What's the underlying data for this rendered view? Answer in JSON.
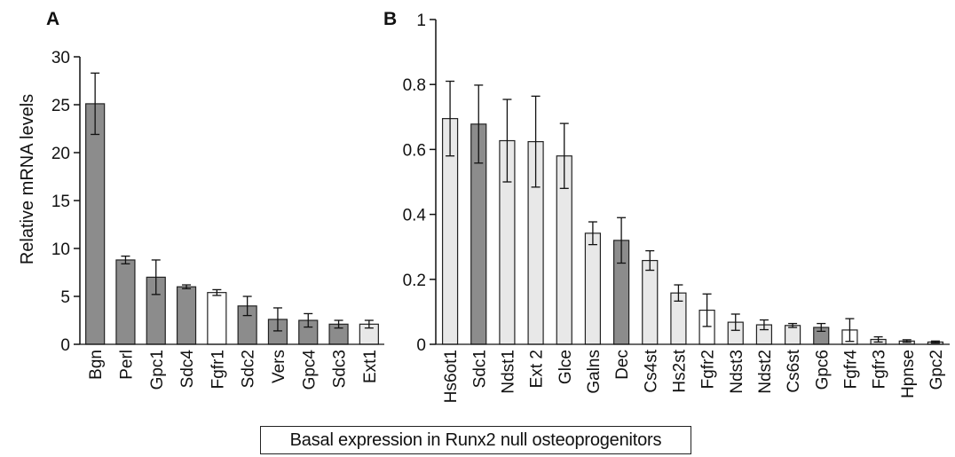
{
  "caption": "Basal expression in Runx2 null osteoprogenitors",
  "colors": {
    "dark": "#8c8c8c",
    "light": "#e8e8e8",
    "white": "#ffffff"
  },
  "chart_data": [
    {
      "type": "bar",
      "panel_label": "A",
      "ylabel": "Relative mRNA levels",
      "ylim": [
        0,
        30
      ],
      "yticks": [
        0,
        5,
        10,
        15,
        20,
        25,
        30
      ],
      "grid": false,
      "categories": [
        "Bgn",
        "Perl",
        "Gpc1",
        "Sdc4",
        "Fgfr1",
        "Sdc2",
        "Vers",
        "Gpc4",
        "Sdc3",
        "Ext1"
      ],
      "values": [
        25.1,
        8.8,
        7.0,
        6.0,
        5.4,
        4.0,
        2.6,
        2.5,
        2.1,
        2.1
      ],
      "errors": [
        3.2,
        0.4,
        1.8,
        0.2,
        0.3,
        1.0,
        1.2,
        0.7,
        0.4,
        0.4
      ],
      "fills": [
        "dark",
        "dark",
        "dark",
        "dark",
        "white",
        "dark",
        "dark",
        "dark",
        "dark",
        "light"
      ]
    },
    {
      "type": "bar",
      "panel_label": "B",
      "ylim": [
        0,
        1
      ],
      "yticks": [
        0,
        0.2,
        0.4,
        0.6,
        0.8,
        1
      ],
      "grid": false,
      "categories": [
        "Hs6ot1",
        "Sdc1",
        "Ndst1",
        "Ext 2",
        "Glce",
        "Galns",
        "Dec",
        "Cs4st",
        "Hs2st",
        "Fgfr2",
        "Ndst3",
        "Ndst2",
        "Cs6st",
        "Gpc6",
        "Fgfr4",
        "Fgfr3",
        "Hpnse",
        "Gpc2"
      ],
      "values": [
        0.695,
        0.678,
        0.627,
        0.624,
        0.58,
        0.342,
        0.32,
        0.258,
        0.158,
        0.105,
        0.068,
        0.06,
        0.058,
        0.052,
        0.044,
        0.015,
        0.01,
        0.007
      ],
      "errors": [
        0.115,
        0.12,
        0.127,
        0.14,
        0.1,
        0.035,
        0.07,
        0.03,
        0.025,
        0.05,
        0.025,
        0.015,
        0.006,
        0.012,
        0.035,
        0.008,
        0.004,
        0.003
      ],
      "fills": [
        "light",
        "dark",
        "light",
        "light",
        "light",
        "light",
        "dark",
        "light",
        "light",
        "white",
        "light",
        "light",
        "light",
        "dark",
        "white",
        "light",
        "light",
        "light"
      ]
    }
  ]
}
